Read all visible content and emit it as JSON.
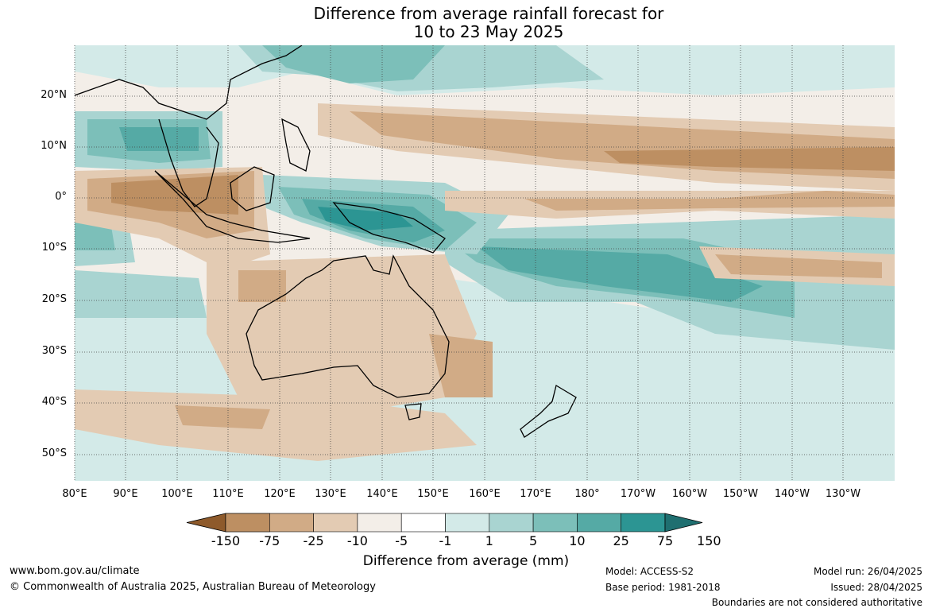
{
  "title_line1": "Difference from average rainfall forecast for",
  "title_line2": "10 to 23 May 2025",
  "latitude_labels": [
    "20°N",
    "10°N",
    "0°",
    "10°S",
    "20°S",
    "30°S",
    "40°S",
    "50°S"
  ],
  "longitude_labels": [
    "80°E",
    "90°E",
    "100°E",
    "110°E",
    "120°E",
    "130°E",
    "140°E",
    "150°E",
    "160°E",
    "170°E",
    "180°",
    "170°W",
    "160°W",
    "150°W",
    "140°W",
    "130°W"
  ],
  "colorbar": {
    "title": "Difference from average (mm)",
    "tick_labels": [
      "-150",
      "-75",
      "-25",
      "-10",
      "-5",
      "-1",
      "1",
      "5",
      "10",
      "25",
      "75",
      "150"
    ],
    "colors": [
      "#a97540",
      "#bd8f62",
      "#d1ab86",
      "#e3cbb3",
      "#f3eee8",
      "#ffffff",
      "#d3eae8",
      "#a9d4d1",
      "#7cbfb9",
      "#55aaa5",
      "#2c9593",
      "#1f6f70"
    ]
  },
  "footer": {
    "website": "www.bom.gov.au/climate",
    "copyright": "© Commonwealth of Australia 2025, Australian Bureau of Meteorology",
    "model": "Model: ACCESS-S2",
    "base_period": "Base period: 1981-2018",
    "model_run": "Model run: 26/04/2025",
    "issued": "Issued: 28/04/2025",
    "disclaimer": "Boundaries are not considered authoritative"
  }
}
